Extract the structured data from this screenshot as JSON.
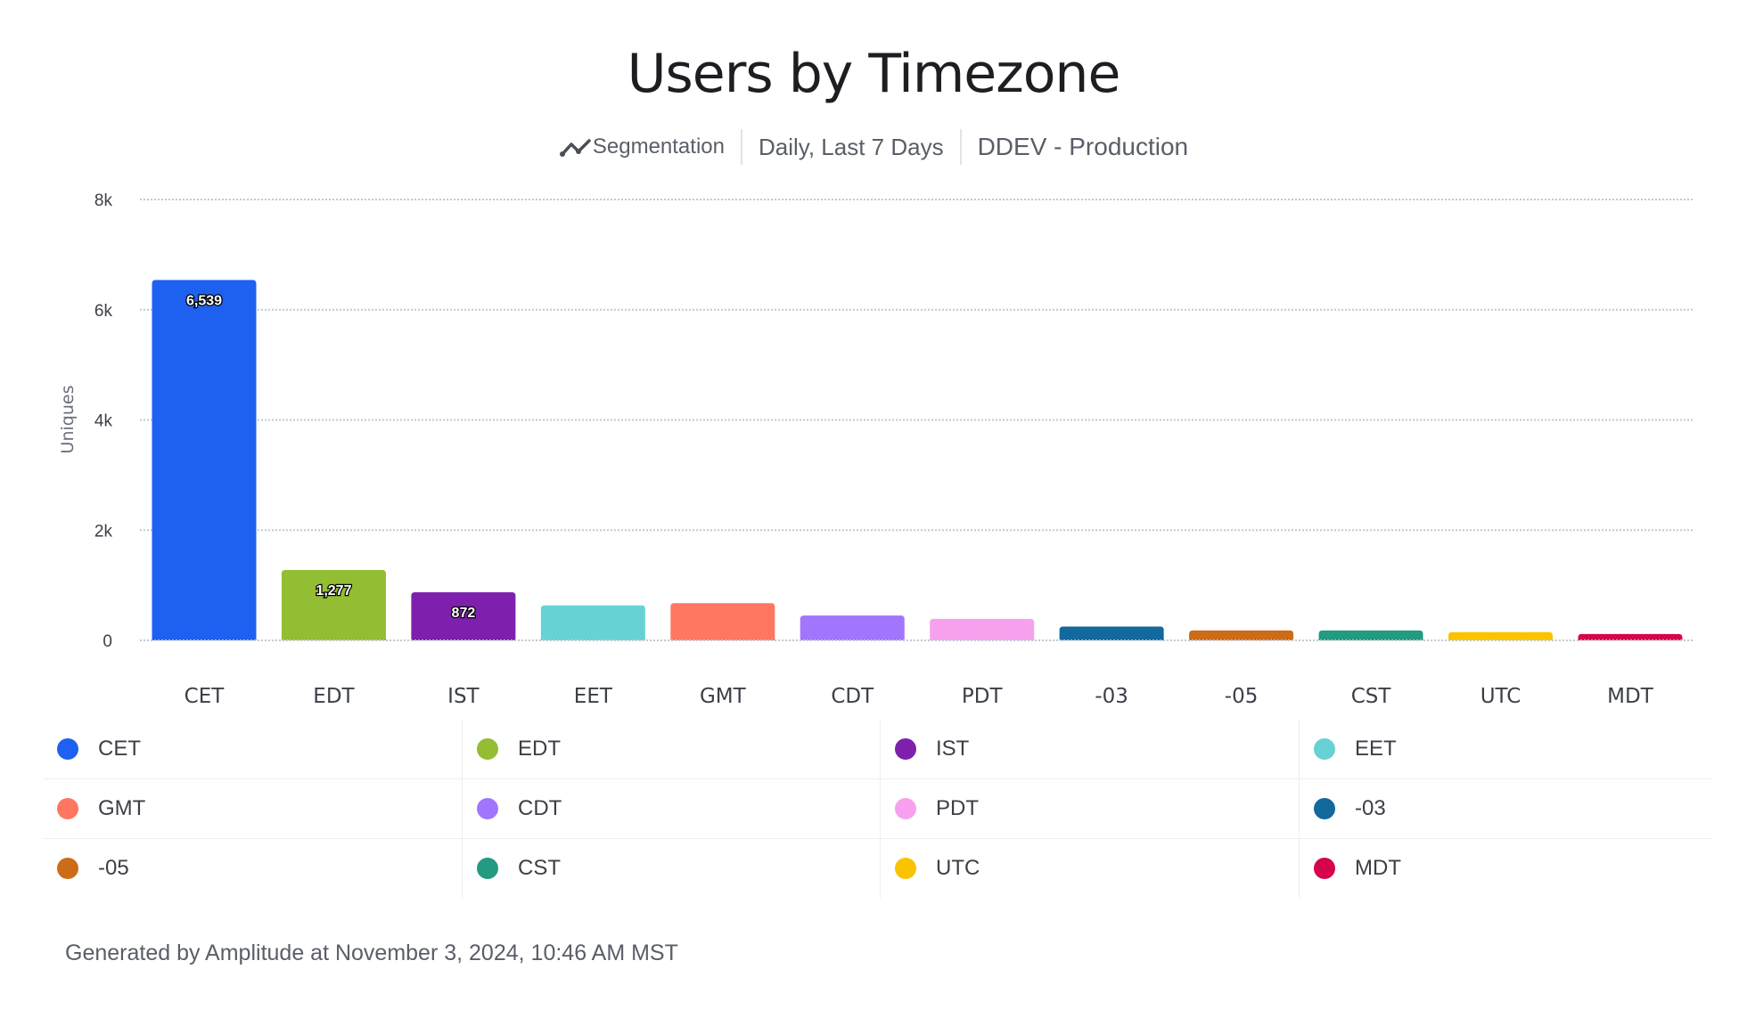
{
  "chart_data": {
    "type": "bar",
    "title": "Users by Timezone",
    "ylabel": "Uniques",
    "xlabel": "",
    "ylim": [
      0,
      8000
    ],
    "yticks": [
      "0",
      "2k",
      "4k",
      "6k",
      "8k"
    ],
    "ytick_values": [
      0,
      2000,
      4000,
      6000,
      8000
    ],
    "grid": true,
    "legend_placement": "bottom",
    "categories": [
      "CET",
      "EDT",
      "IST",
      "EET",
      "GMT",
      "CDT",
      "PDT",
      "-03",
      "-05",
      "CST",
      "UTC",
      "MDT"
    ],
    "values": [
      6539,
      1277,
      872,
      635,
      675,
      450,
      390,
      250,
      180,
      180,
      150,
      115
    ],
    "data_labels": [
      "6,539",
      "1,277",
      "872",
      "",
      "",
      "",
      "",
      "",
      "",
      "",
      "",
      ""
    ],
    "colors": [
      "#1e61f0",
      "#93bd32",
      "#7e20ad",
      "#68d1d4",
      "#ff7760",
      "#a275fd",
      "#f7a1ee",
      "#11699d",
      "#cc6c18",
      "#249a82",
      "#f9c300",
      "#d5044c"
    ]
  },
  "subtitle": {
    "icon": "segmentation-line-icon",
    "chart_type": "Segmentation",
    "range": "Daily, Last 7 Days",
    "project": "DDEV - Production"
  },
  "footer": "Generated by Amplitude at November 3, 2024, 10:46 AM MST"
}
